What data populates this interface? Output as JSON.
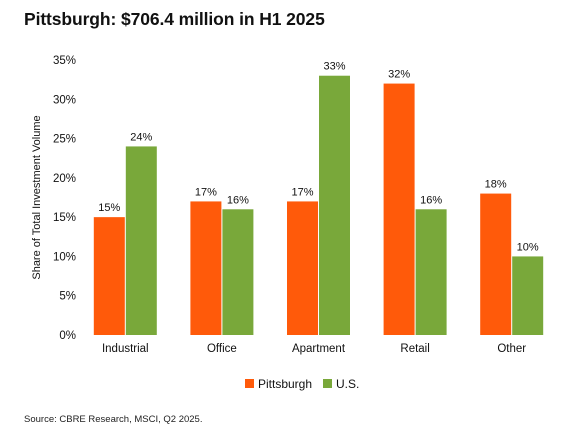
{
  "title": "Pittsburgh: $706.4 million in H1 2025",
  "source": "Source: CBRE Research, MSCI, Q2 2025.",
  "colors": {
    "pittsburgh": "#ff5a0a",
    "us": "#79a83a"
  },
  "chart_data": {
    "type": "bar",
    "title": "Pittsburgh: $706.4 million in H1 2025",
    "ylabel": "Share of Total Investment Volume",
    "xlabel": "",
    "categories": [
      "Industrial",
      "Office",
      "Apartment",
      "Retail",
      "Other"
    ],
    "series": [
      {
        "name": "Pittsburgh",
        "values": [
          15,
          17,
          17,
          32,
          18
        ],
        "labels": [
          "15%",
          "17%",
          "17%",
          "32%",
          "18%"
        ]
      },
      {
        "name": "U.S.",
        "values": [
          24,
          16,
          33,
          16,
          10
        ],
        "labels": [
          "24%",
          "16%",
          "33%",
          "16%",
          "10%"
        ]
      }
    ],
    "ylim": [
      0,
      35
    ],
    "yticks": [
      "0%",
      "5%",
      "10%",
      "15%",
      "20%",
      "25%",
      "30%",
      "35%"
    ],
    "grid": false,
    "legend": "bottom-center"
  }
}
